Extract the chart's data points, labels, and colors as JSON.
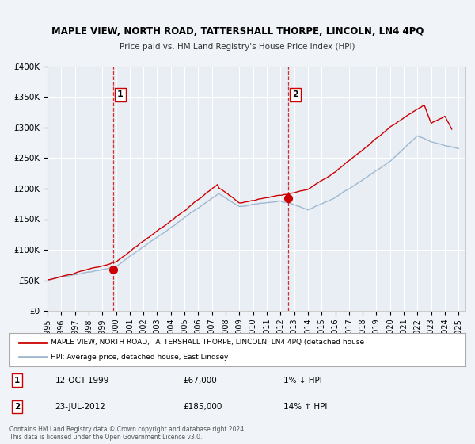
{
  "title": "MAPLE VIEW, NORTH ROAD, TATTERSHALL THORPE, LINCOLN, LN4 4PQ",
  "subtitle": "Price paid vs. HM Land Registry's House Price Index (HPI)",
  "background_color": "#f0f4f8",
  "plot_bg_color": "#e8eef4",
  "grid_color": "#ffffff",
  "ylim": [
    0,
    400000
  ],
  "yticks": [
    0,
    50000,
    100000,
    150000,
    200000,
    250000,
    300000,
    350000,
    400000
  ],
  "ytick_labels": [
    "£0",
    "£50K",
    "£100K",
    "£150K",
    "£200K",
    "£250K",
    "£300K",
    "£350K",
    "£400K"
  ],
  "xlim_start": 1995.0,
  "xlim_end": 2025.5,
  "hpi_color": "#a0b8d0",
  "price_color": "#cc0000",
  "sale1_x": 1999.78,
  "sale1_y": 67000,
  "sale1_label": "1",
  "sale1_date": "12-OCT-1999",
  "sale1_price": "£67,000",
  "sale1_note": "1% ↓ HPI",
  "sale2_x": 2012.55,
  "sale2_y": 185000,
  "sale2_label": "2",
  "sale2_date": "23-JUL-2012",
  "sale2_price": "£185,000",
  "sale2_note": "14% ↑ HPI",
  "vline1_x": 1999.78,
  "vline2_x": 2012.55,
  "legend_line1": "MAPLE VIEW, NORTH ROAD, TATTERSHALL THORPE, LINCOLN, LN4 4PQ (detached house",
  "legend_line2": "HPI: Average price, detached house, East Lindsey",
  "footer_line1": "Contains HM Land Registry data © Crown copyright and database right 2024.",
  "footer_line2": "This data is licensed under the Open Government Licence v3.0."
}
